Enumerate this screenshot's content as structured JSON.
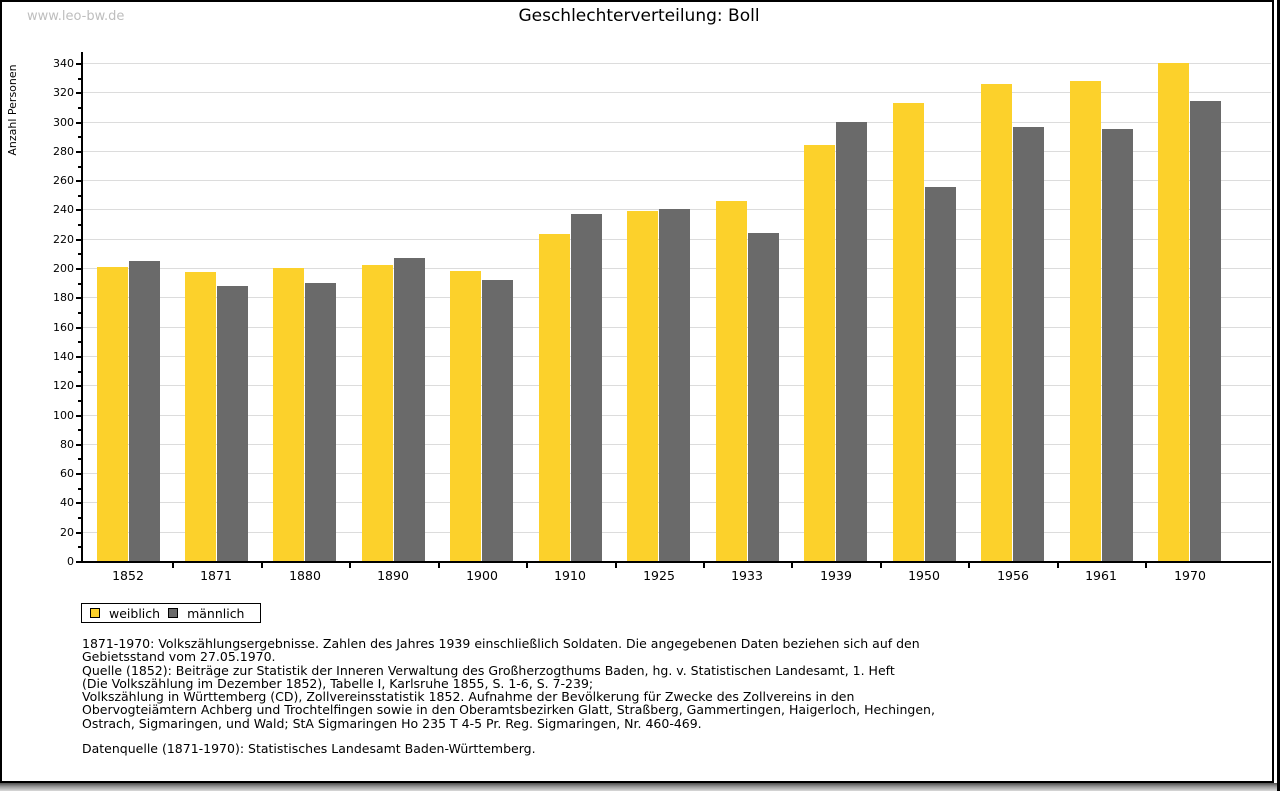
{
  "page": {
    "watermark": "www.leo-bw.de",
    "title": "Geschlechterverteilung: Boll"
  },
  "chart_data": {
    "type": "bar",
    "title": "Geschlechterverteilung: Boll",
    "xlabel": "",
    "ylabel": "Anzahl Personen",
    "ylim": [
      0,
      340
    ],
    "ytick_step": 20,
    "ytick_minor_step": 10,
    "grid": true,
    "legend_position": "bottom-left",
    "categories": [
      "1852",
      "1871",
      "1880",
      "1890",
      "1900",
      "1910",
      "1925",
      "1933",
      "1939",
      "1950",
      "1956",
      "1961",
      "1970"
    ],
    "series": [
      {
        "name": "weiblich",
        "color": "#FCD12B",
        "values": [
          201,
          197,
          200,
          202,
          198,
          223,
          239,
          246,
          284,
          313,
          326,
          328,
          340
        ]
      },
      {
        "name": "männlich",
        "color": "#6A6A6A",
        "values": [
          205,
          188,
          190,
          207,
          192,
          237,
          240,
          224,
          300,
          255,
          296,
          295,
          314
        ]
      }
    ]
  },
  "legend": {
    "items": [
      {
        "label": "weiblich",
        "color": "#FCD12B"
      },
      {
        "label": "männlich",
        "color": "#6A6A6A"
      }
    ]
  },
  "notes": {
    "lines": [
      "1871-1970: Volkszählungsergebnisse. Zahlen des Jahres 1939 einschließlich Soldaten. Die angegebenen Daten beziehen sich auf den",
      "Gebietsstand vom 27.05.1970.",
      "Quelle (1852): Beiträge zur Statistik der Inneren Verwaltung des Großherzogthums Baden, hg. v. Statistischen Landesamt, 1. Heft",
      "(Die Volkszählung im Dezember 1852), Tabelle I, Karlsruhe 1855, S. 1-6, S. 7-239;",
      "Volkszählung in Württemberg (CD), Zollvereinsstatistik 1852. Aufnahme der Bevölkerung für Zwecke des Zollvereins in den",
      "Obervogteiämtern Achberg und Trochtelfingen sowie in den Oberamtsbezirken Glatt, Straßberg, Gammertingen, Haigerloch, Hechingen,",
      "Ostrach, Sigmaringen, und Wald; StA Sigmaringen Ho 235 T 4-5 Pr. Reg. Sigmaringen, Nr. 460-469."
    ],
    "datasource": "Datenquelle (1871-1970): Statistisches Landesamt Baden-Württemberg."
  }
}
